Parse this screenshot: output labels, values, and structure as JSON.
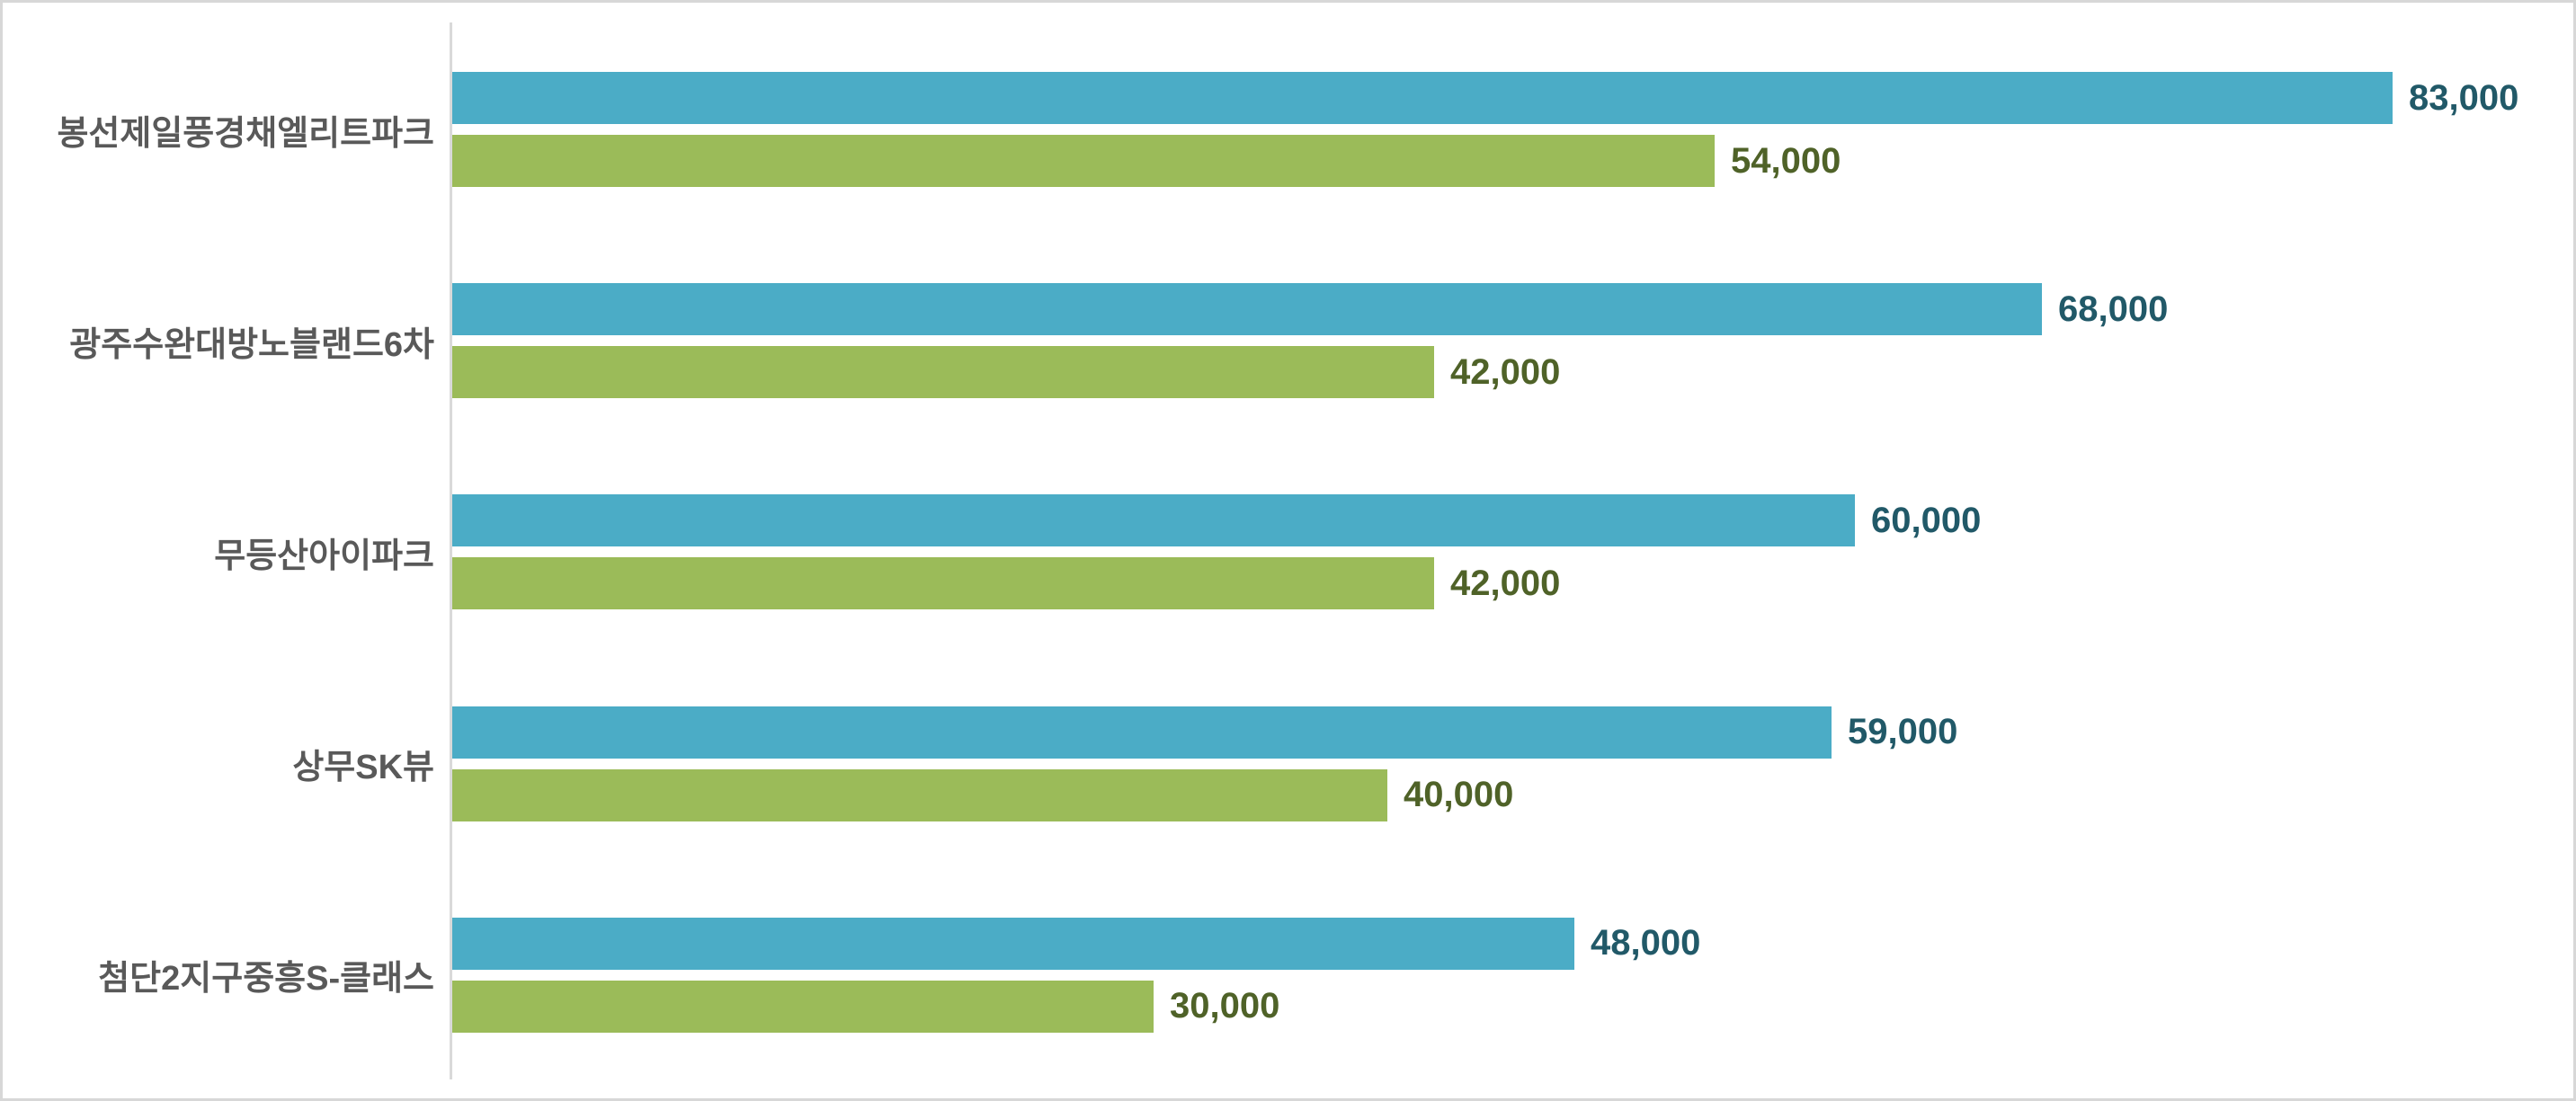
{
  "chart_data": {
    "type": "bar",
    "orientation": "horizontal",
    "title": "",
    "xlabel": "",
    "ylabel": "",
    "xlim": [
      0,
      90000
    ],
    "grid": false,
    "legend": false,
    "axis_line_color": "#d9d9d9",
    "category_label_color": "#595959",
    "categories": [
      "봉선제일풍경채엘리트파크",
      "광주수완대방노블랜드6차",
      "무등산아이파크",
      "상무SK뷰",
      "첨단2지구중흥S-클래스"
    ],
    "series": [
      {
        "name": "blue-series",
        "color": "#4BACC6",
        "label_color": "#215968",
        "values": [
          83000,
          68000,
          60000,
          59000,
          48000
        ],
        "display_values": [
          "83,000",
          "68,000",
          "60,000",
          "59,000",
          "48,000"
        ]
      },
      {
        "name": "green-series",
        "color": "#9BBB59",
        "label_color": "#4F6228",
        "values": [
          54000,
          42000,
          42000,
          40000,
          30000
        ],
        "display_values": [
          "54,000",
          "42,000",
          "42,000",
          "40,000",
          "30,000"
        ]
      }
    ]
  }
}
